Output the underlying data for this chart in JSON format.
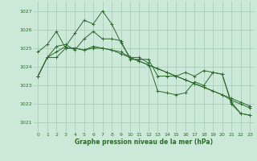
{
  "bg_color": "#cce8d8",
  "grid_color": "#aacebb",
  "line_color": "#2d6a2d",
  "ylabel_values": [
    1021,
    1022,
    1023,
    1024,
    1025,
    1026,
    1027
  ],
  "xlabel_values": [
    0,
    1,
    2,
    3,
    4,
    5,
    6,
    7,
    8,
    9,
    10,
    11,
    12,
    13,
    14,
    15,
    16,
    17,
    18,
    19,
    20,
    21,
    22,
    23
  ],
  "xlabel_label": "Graphe pression niveau de la mer (hPa)",
  "ylim": [
    1020.5,
    1027.5
  ],
  "xlim": [
    -0.5,
    23.5
  ],
  "series": [
    [
      1023.5,
      1024.5,
      1024.8,
      1025.1,
      1025.8,
      1026.5,
      1026.3,
      1027.0,
      1026.3,
      1025.3,
      1024.5,
      1024.5,
      1024.2,
      1022.7,
      1022.6,
      1022.5,
      1022.6,
      1023.2,
      1023.0,
      1023.7,
      1023.6,
      1022.1,
      1021.5,
      1021.4
    ],
    [
      1024.8,
      1025.2,
      1025.9,
      1025.0,
      1025.0,
      1024.9,
      1025.1,
      1025.0,
      1024.9,
      1024.7,
      1024.5,
      1024.3,
      1024.1,
      1023.9,
      1023.7,
      1023.5,
      1023.3,
      1023.1,
      1022.9,
      1022.7,
      1022.5,
      1022.3,
      1022.1,
      1021.9
    ],
    [
      1023.5,
      1024.5,
      1024.5,
      1025.0,
      1025.0,
      1024.9,
      1025.0,
      1025.0,
      1024.9,
      1024.8,
      1024.5,
      1024.3,
      1024.1,
      1023.9,
      1023.7,
      1023.5,
      1023.3,
      1023.1,
      1022.9,
      1022.7,
      1022.5,
      1022.2,
      1022.0,
      1021.8
    ],
    [
      1023.5,
      1024.5,
      1025.1,
      1025.2,
      1024.9,
      1025.5,
      1025.9,
      1025.5,
      1025.5,
      1025.4,
      1024.4,
      1024.4,
      1024.4,
      1023.5,
      1023.5,
      1023.5,
      1023.7,
      1023.5,
      1023.8,
      1023.7,
      1023.6,
      1022.0,
      1021.5,
      1021.4
    ]
  ]
}
